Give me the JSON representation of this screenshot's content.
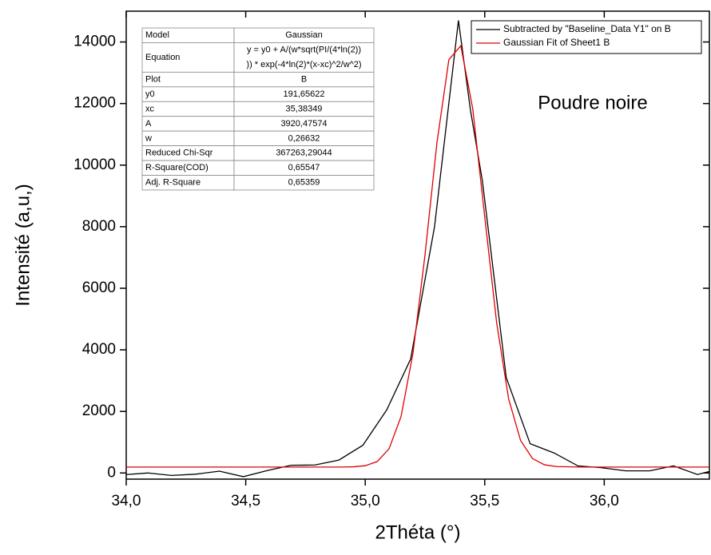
{
  "chart_data": {
    "type": "line",
    "xlabel": "2Théta (°)",
    "ylabel": "Intensité (a,u,)",
    "annotation": "Poudre noire",
    "xlim": [
      34.0,
      36.44
    ],
    "ylim": [
      -200,
      15000
    ],
    "xticks": [
      {
        "value": 34.0,
        "label": "34,0"
      },
      {
        "value": 34.5,
        "label": "34,5"
      },
      {
        "value": 35.0,
        "label": "35,0"
      },
      {
        "value": 35.5,
        "label": "35,5"
      },
      {
        "value": 36.0,
        "label": "36,0"
      }
    ],
    "yticks": [
      0,
      2000,
      4000,
      6000,
      8000,
      10000,
      12000,
      14000
    ],
    "legend": "upper right",
    "series": [
      {
        "name": "Subtracted by \"Baseline_Data Y1\" on B",
        "color": "#000000",
        "x": [
          34.0,
          34.09,
          34.19,
          34.29,
          34.39,
          34.49,
          34.59,
          34.69,
          34.79,
          34.89,
          34.99,
          35.09,
          35.19,
          35.29,
          35.39,
          35.44,
          35.49,
          35.59,
          35.69,
          35.79,
          35.89,
          35.99,
          36.09,
          36.19,
          36.29,
          36.39,
          36.44
        ],
        "values": [
          -50,
          0,
          -80,
          -40,
          60,
          -120,
          80,
          250,
          260,
          420,
          900,
          2050,
          3700,
          8000,
          14700,
          11800,
          9500,
          3100,
          950,
          650,
          230,
          170,
          70,
          70,
          230,
          -50,
          50
        ]
      },
      {
        "name": "Gaussian Fit of Sheet1 B",
        "color": "#e00000",
        "x": [
          34.0,
          34.8,
          34.9,
          34.95,
          35.0,
          35.05,
          35.1,
          35.15,
          35.2,
          35.25,
          35.3,
          35.35,
          35.4,
          35.45,
          35.5,
          35.55,
          35.6,
          35.65,
          35.7,
          35.75,
          35.8,
          35.9,
          36.44
        ],
        "values": [
          192,
          192,
          193,
          201,
          236,
          370,
          791,
          1837,
          3898,
          7079,
          10723,
          13427,
          13875,
          11822,
          8324,
          4870,
          2405,
          1054,
          467,
          265,
          208,
          192,
          192
        ]
      }
    ],
    "fit_table": {
      "rows": [
        [
          "Model",
          "Gaussian"
        ],
        [
          "Equation",
          [
            "y = y0 + A/(w*sqrt(PI/(4*ln(2))",
            ")) * exp(-4*ln(2)*(x-xc)^2/w^2)"
          ]
        ],
        [
          "Plot",
          "B"
        ],
        [
          "y0",
          "191,65622"
        ],
        [
          "xc",
          "35,38349"
        ],
        [
          "A",
          "3920,47574"
        ],
        [
          "w",
          "0,26632"
        ],
        [
          "Reduced Chi-Sqr",
          "367263,29044"
        ],
        [
          "R-Square(COD)",
          "0,65547"
        ],
        [
          "Adj. R-Square",
          "0,65359"
        ]
      ]
    }
  }
}
